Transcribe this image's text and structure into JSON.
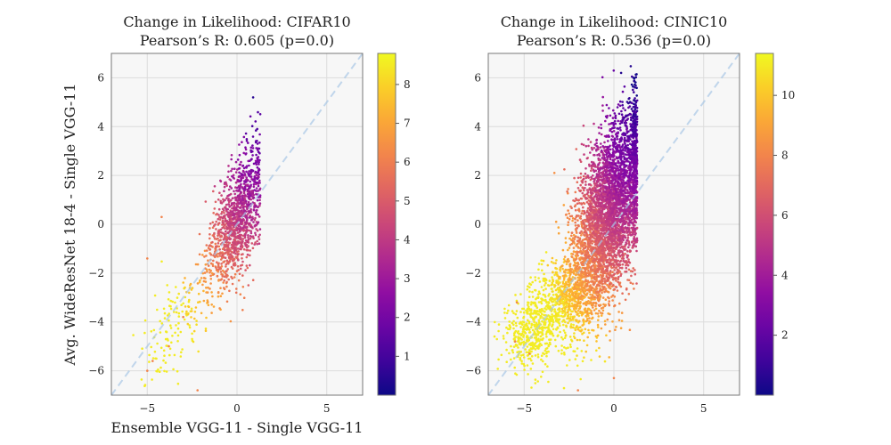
{
  "chart_data": [
    {
      "type": "scatter",
      "title": "Change in Likelihood: CIFAR10",
      "subtitle": "Pearson’s R: 0.605 (p=0.0)",
      "xlabel": "Ensemble VGG-11 - Single VGG-11",
      "ylabel": "Avg. WideResNet 18-4 - Single VGG-11",
      "xlim": [
        -7,
        7
      ],
      "ylim": [
        -7,
        7
      ],
      "xticks": [
        -5,
        0,
        5
      ],
      "yticks": [
        -6,
        -4,
        -2,
        0,
        2,
        4,
        6
      ],
      "grid": true,
      "reference_line": "y = x (dashed)",
      "colormap": "plasma",
      "colorbar": {
        "min": 0,
        "max": 8.8,
        "ticks": [
          1,
          2,
          3,
          4,
          5,
          6,
          7,
          8
        ]
      },
      "point_cloud": {
        "n_points": 1400,
        "x_max": 1.3,
        "center": [
          0.0,
          0.2
        ],
        "x_spread": 0.75,
        "y_spread": 1.4,
        "tail_start": [
          -1.0,
          -1.4
        ],
        "tail_end": [
          -4.8,
          -6.0
        ],
        "tail_fraction": 0.14
      },
      "sample_outliers": [
        {
          "x": 0.9,
          "y": 5.2
        },
        {
          "x": -5.0,
          "y": -1.4
        },
        {
          "x": -5.0,
          "y": -6.0
        },
        {
          "x": -4.7,
          "y": -5.6
        },
        {
          "x": -3.8,
          "y": -5.0
        },
        {
          "x": -2.2,
          "y": -6.8
        },
        {
          "x": -4.2,
          "y": 0.3
        },
        {
          "x": -3.0,
          "y": -3.8
        }
      ]
    },
    {
      "type": "scatter",
      "title": "Change in Likelihood: CINIC10",
      "subtitle": "Pearson’s R: 0.536 (p=0.0)",
      "xlabel": "",
      "ylabel": "",
      "xlim": [
        -7,
        7
      ],
      "ylim": [
        -7,
        7
      ],
      "xticks": [
        -5,
        0,
        5
      ],
      "yticks": [
        -6,
        -4,
        -2,
        0,
        2,
        4,
        6
      ],
      "grid": true,
      "reference_line": "y = x (dashed)",
      "colormap": "plasma",
      "colorbar": {
        "min": 0,
        "max": 11.4,
        "ticks": [
          2,
          4,
          6,
          8,
          10
        ]
      },
      "point_cloud": {
        "n_points": 5200,
        "x_max": 1.3,
        "center": [
          -0.3,
          0.3
        ],
        "x_spread": 1.1,
        "y_spread": 2.1,
        "tail_start": [
          -1.2,
          -2.0
        ],
        "tail_end": [
          -5.3,
          -4.8
        ],
        "tail_fraction": 0.2
      },
      "sample_outliers": [
        {
          "x": 0.4,
          "y": 6.2
        },
        {
          "x": -5.4,
          "y": -3.2
        },
        {
          "x": -5.5,
          "y": -4.8
        },
        {
          "x": -2.0,
          "y": -6.8
        },
        {
          "x": -4.7,
          "y": -5.3
        },
        {
          "x": 0.0,
          "y": -6.3
        }
      ]
    }
  ]
}
